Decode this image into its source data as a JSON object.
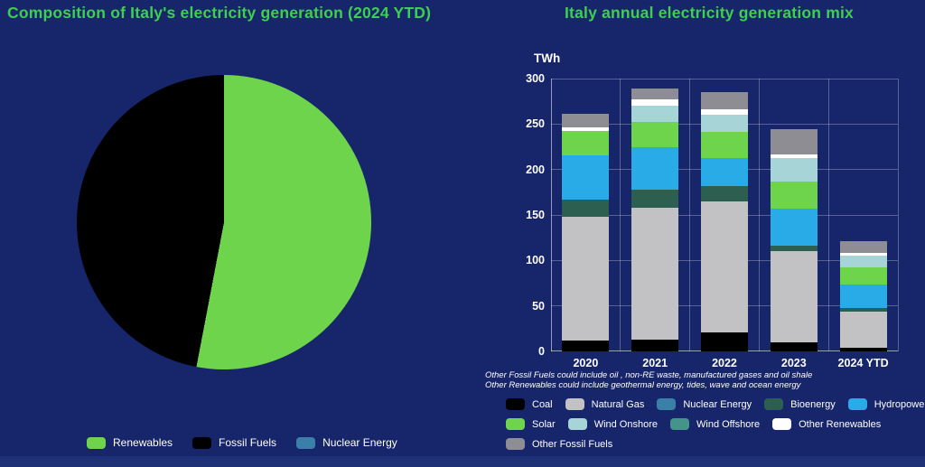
{
  "theme": {
    "background": "#17256b",
    "footer_strip": "#1e3076",
    "title_green": "#3ecf51",
    "text_white": "#ffffff"
  },
  "chart_data": [
    {
      "type": "pie",
      "title": "Composition of Italy's electricity generation (2024 YTD)",
      "start_angle_deg": 0,
      "slices": [
        {
          "label": "Renewables",
          "pct": 53,
          "color": "#6dd44c"
        },
        {
          "label": "Fossil Fuels",
          "pct": 47,
          "color": "#000000"
        },
        {
          "label": "Nuclear Energy",
          "pct": 0,
          "color": "#3a7fa8"
        }
      ],
      "legend": [
        {
          "label": "Renewables",
          "color": "#6dd44c"
        },
        {
          "label": "Fossil Fuels",
          "color": "#000000"
        },
        {
          "label": "Nuclear Energy",
          "color": "#3a7fa8"
        }
      ],
      "legend_position": "bottom"
    },
    {
      "type": "bar",
      "stacked": true,
      "title": "Italy annual electricity generation mix",
      "ylabel": "TWh",
      "ylim": [
        0,
        300
      ],
      "yticks": [
        0,
        50,
        100,
        150,
        200,
        250,
        300
      ],
      "grid": true,
      "categories": [
        "2020",
        "2021",
        "2022",
        "2023",
        "2024 YTD"
      ],
      "series": [
        {
          "name": "Coal",
          "color": "#000000",
          "values": [
            12,
            13,
            21,
            10,
            4
          ]
        },
        {
          "name": "Natural Gas",
          "color": "#c2c1c3",
          "values": [
            136,
            145,
            144,
            100,
            40
          ]
        },
        {
          "name": "Nuclear Energy",
          "color": "#3a7fa8",
          "values": [
            0,
            0,
            0,
            0,
            0
          ]
        },
        {
          "name": "Bioenergy",
          "color": "#2d5f51",
          "values": [
            19,
            20,
            17,
            6,
            4
          ]
        },
        {
          "name": "Hydropower",
          "color": "#29abe8",
          "values": [
            49,
            47,
            31,
            41,
            26
          ]
        },
        {
          "name": "Solar",
          "color": "#6dd44c",
          "values": [
            26,
            27,
            28,
            30,
            18
          ]
        },
        {
          "name": "Wind Onshore",
          "color": "#a7d4d7",
          "values": [
            0,
            18,
            19,
            26,
            13
          ]
        },
        {
          "name": "Wind Offshore",
          "color": "#44948a",
          "values": [
            0,
            0,
            0,
            0,
            0
          ]
        },
        {
          "name": "Other Renewables",
          "color": "#ffffff",
          "values": [
            4,
            7,
            6,
            4,
            3
          ]
        },
        {
          "name": "Other Fossil Fuels",
          "color": "#8e8d94",
          "values": [
            15,
            12,
            19,
            27,
            13
          ]
        }
      ],
      "totals": [
        261,
        289,
        285,
        244,
        121
      ],
      "footnotes": [
        "Other Fossil Fuels could include oil , non-RE waste, manufactured gases and oil shale",
        "Other Renewables could include geothermal energy, tides, wave and ocean energy"
      ],
      "legend_rows": [
        [
          "Coal",
          "Natural Gas",
          "Nuclear Energy",
          "Bioenergy",
          "Hydropower"
        ],
        [
          "Solar",
          "Wind Onshore",
          "Wind Offshore",
          "Other Renewables"
        ],
        [
          "Other Fossil Fuels"
        ]
      ],
      "legend_position": "bottom"
    }
  ]
}
